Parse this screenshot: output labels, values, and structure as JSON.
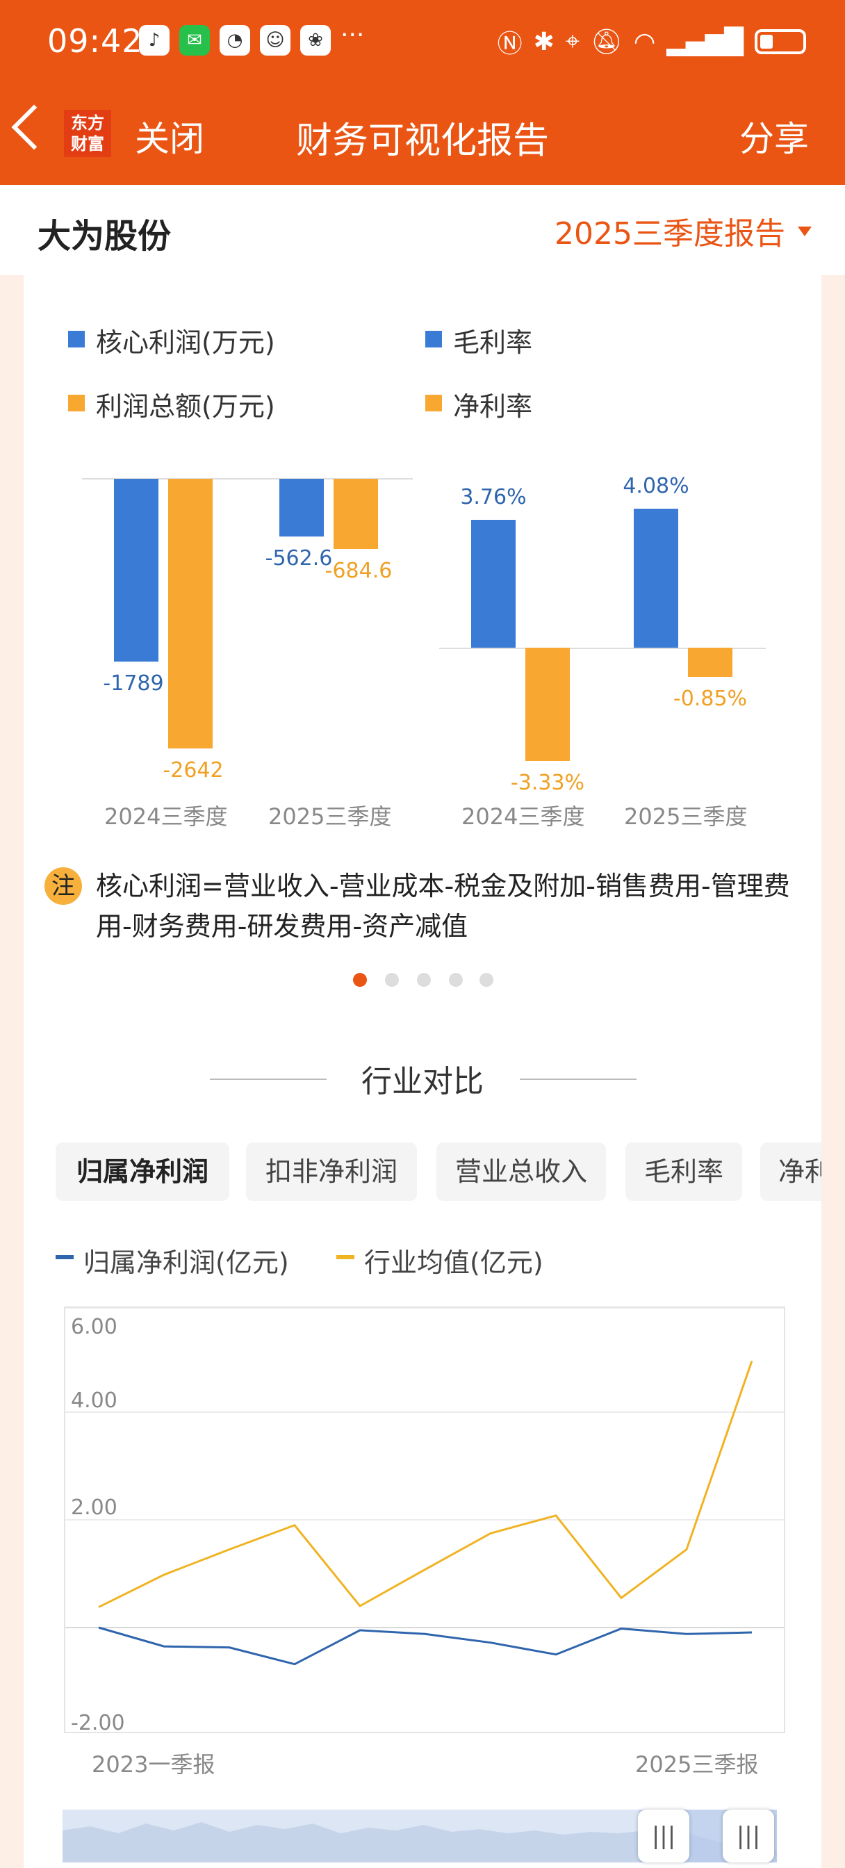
{
  "status_bar": {
    "time": "09:42",
    "more": "···"
  },
  "nav": {
    "logo_line1": "东方",
    "logo_line2": "财富",
    "close": "关闭",
    "title": "财务可视化报告",
    "share": "分享"
  },
  "header": {
    "company": "大为股份",
    "period": "2025三季度报告"
  },
  "colors": {
    "accent": "#ea5514",
    "blue": "#3a7bd5",
    "orange": "#f8a730"
  },
  "legend": {
    "core_profit": "核心利润(万元)",
    "total_profit": "利润总额(万元)",
    "gross_margin": "毛利率",
    "net_margin": "净利率"
  },
  "chart_data": [
    {
      "type": "bar",
      "categories": [
        "2024三季度",
        "2025三季度"
      ],
      "series": [
        {
          "name": "核心利润(万元)",
          "values": [
            -1789,
            -562.6
          ],
          "labels": [
            "-1789",
            "-562.6"
          ]
        },
        {
          "name": "利润总额(万元)",
          "values": [
            -2642,
            -684.6
          ],
          "labels": [
            "-2642",
            "-684.6"
          ]
        }
      ]
    },
    {
      "type": "bar",
      "categories": [
        "2024三季度",
        "2025三季度"
      ],
      "series": [
        {
          "name": "毛利率",
          "values": [
            3.76,
            4.08
          ],
          "labels": [
            "3.76%",
            "4.08%"
          ]
        },
        {
          "name": "净利率",
          "values": [
            -3.33,
            -0.85
          ],
          "labels": [
            "-3.33%",
            "-0.85%"
          ]
        }
      ]
    },
    {
      "type": "line",
      "x_first_label": "2023一季报",
      "x_last_label": "2025三季报",
      "y_ticks": [
        "6.00",
        "4.00",
        "2.00",
        "-2.00"
      ],
      "ylim": [
        -2,
        6
      ],
      "series": [
        {
          "name": "归属净利润(亿元)",
          "color": "#2f65ad",
          "values": [
            0.0,
            -0.35,
            -0.37,
            -0.68,
            -0.05,
            -0.12,
            -0.28,
            -0.5,
            -0.02,
            -0.12,
            -0.09
          ]
        },
        {
          "name": "行业均值(亿元)",
          "color": "#f0b323",
          "values": [
            0.38,
            0.98,
            1.45,
            1.9,
            0.4,
            1.08,
            1.75,
            2.08,
            0.55,
            1.45,
            4.95
          ]
        }
      ]
    }
  ],
  "note": {
    "badge": "注",
    "text": "核心利润=营业收入-营业成本-税金及附加-销售费用-管理费用-财务费用-研发费用-资产减值"
  },
  "industry": {
    "title": "行业对比",
    "tabs": [
      "归属净利润",
      "扣非净利润",
      "营业总收入",
      "毛利率",
      "净利"
    ],
    "legend_net": "归属净利润(亿元)",
    "legend_avg": "行业均值(亿元)"
  },
  "slider": {
    "handle_glyph": "|||"
  }
}
